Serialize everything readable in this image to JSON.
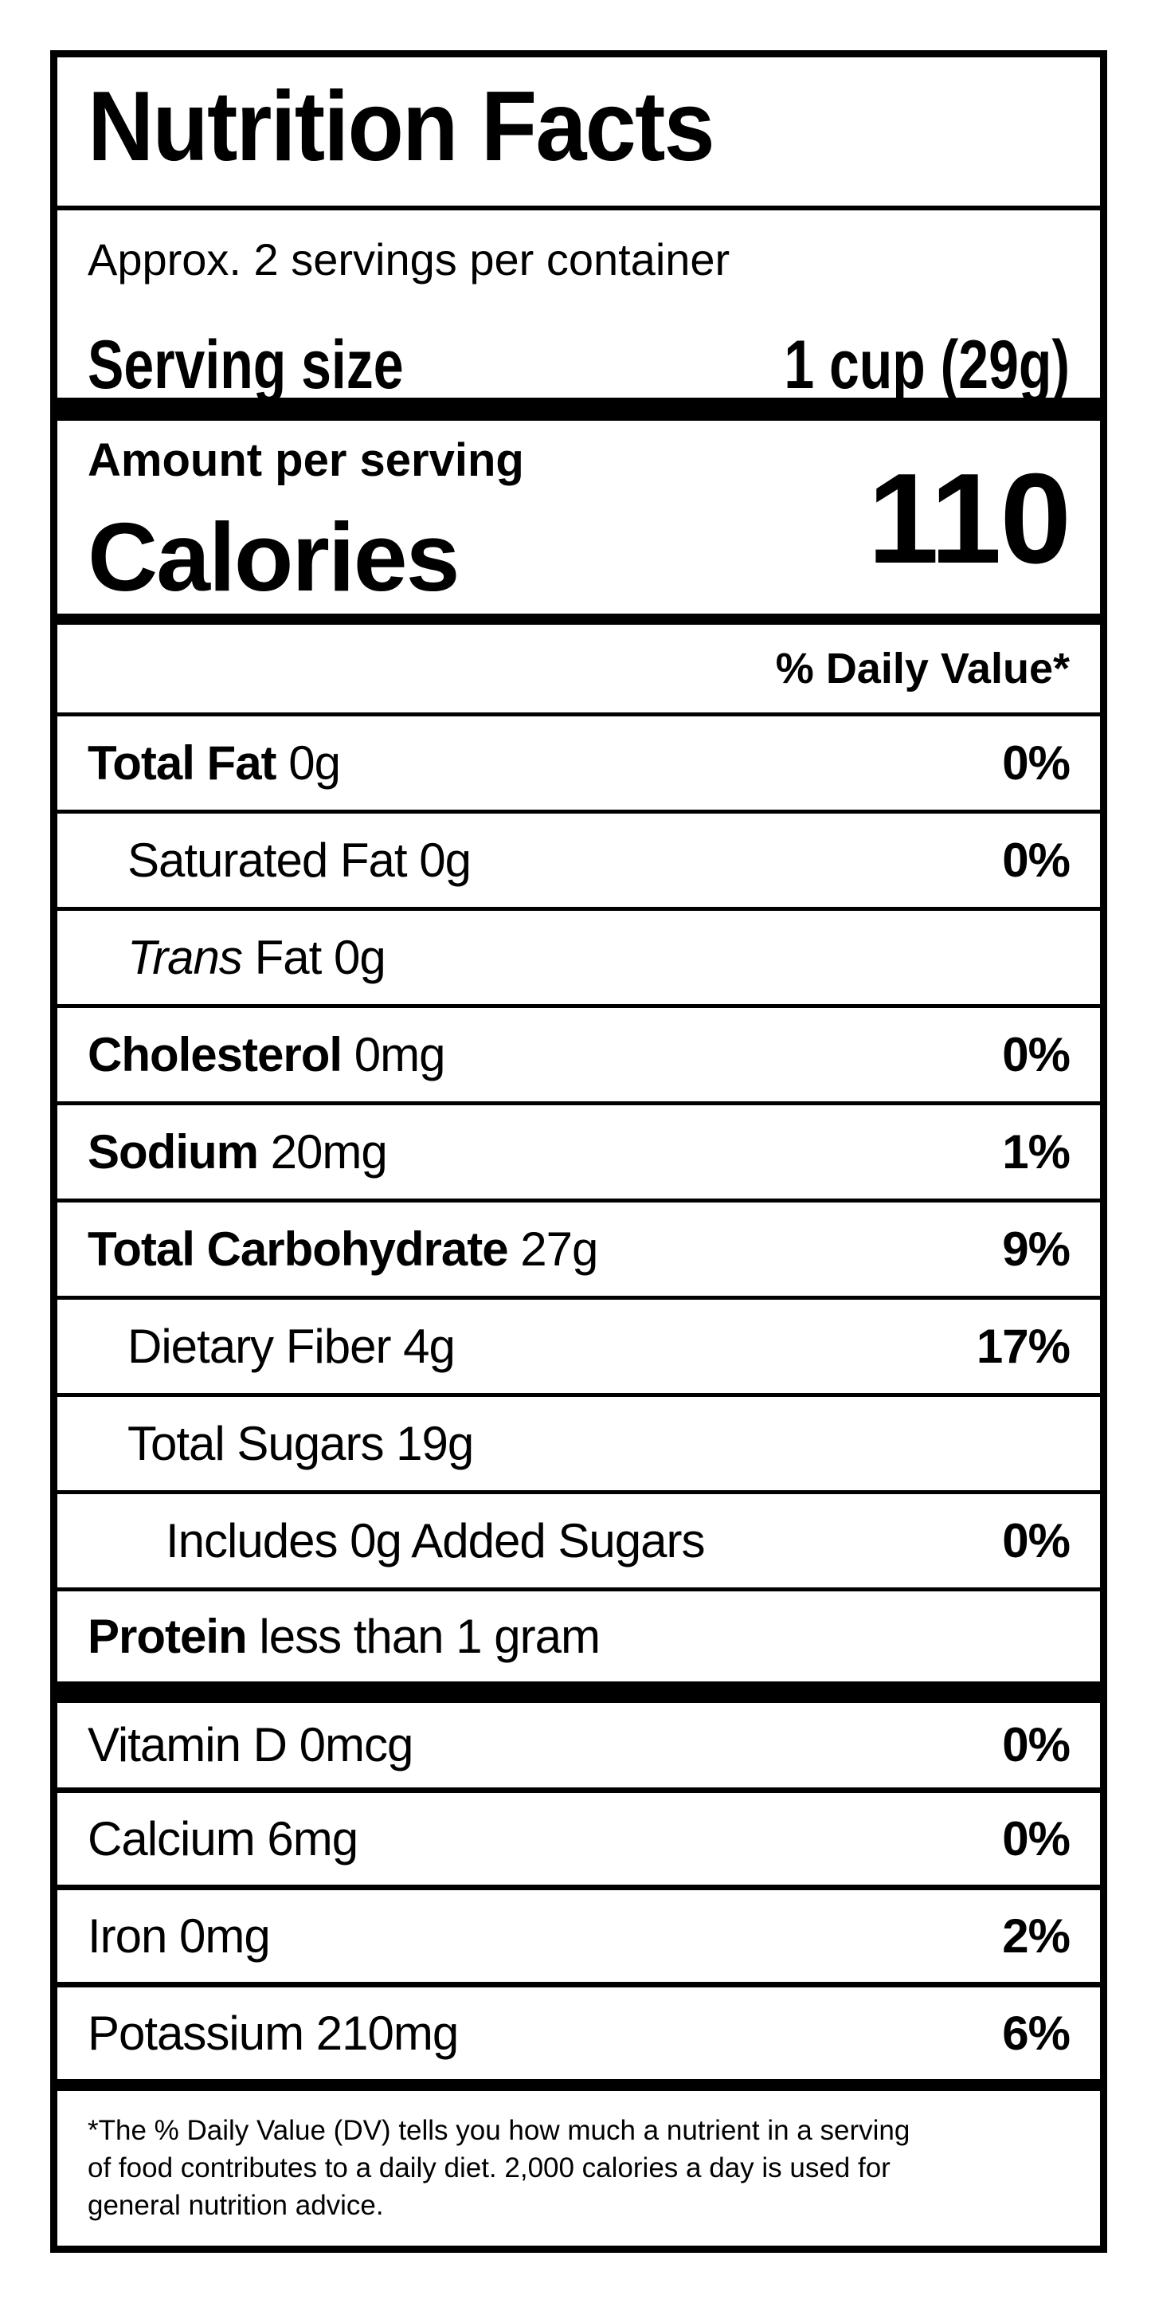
{
  "label": {
    "title": "Nutrition Facts",
    "servings_per_container": "Approx. 2 servings per container",
    "serving_size": {
      "label": "Serving size",
      "value": "1 cup (29g)"
    },
    "amount_per_serving": "Amount per serving",
    "calories": {
      "label": "Calories",
      "value": "110"
    },
    "daily_value_header": "% Daily Value*",
    "colors": {
      "ink": "#000000",
      "background": "#ffffff"
    }
  },
  "rows": [
    {
      "label": "Total Fat",
      "rest": " 0g",
      "pct": "0%"
    },
    {
      "label": "Saturated Fat",
      "rest": " 0g",
      "pct": "0%"
    },
    {
      "label": "Trans",
      "rest": " Fat 0g",
      "pct": ""
    },
    {
      "label": "Cholesterol",
      "rest": " 0mg",
      "pct": "0%"
    },
    {
      "label": "Sodium",
      "rest": " 20mg",
      "pct": "1%"
    },
    {
      "label": "Total Carbohydrate",
      "rest": " 27g",
      "pct": "9%"
    },
    {
      "label": "Dietary Fiber",
      "rest": " 4g",
      "pct": "17%"
    },
    {
      "label": "Total Sugars",
      "rest": " 19g",
      "pct": ""
    },
    {
      "label": "Includes 0g Added Sugars",
      "rest": "",
      "pct": "0%"
    },
    {
      "label": "Protein",
      "rest": " less than 1 gram",
      "pct": ""
    }
  ],
  "vitamins": [
    {
      "label": "Vitamin D 0mcg",
      "pct": "0%"
    },
    {
      "label": "Calcium 6mg",
      "pct": "0%"
    },
    {
      "label": "Iron 0mg",
      "pct": "2%"
    },
    {
      "label": "Potassium 210mg",
      "pct": "6%"
    }
  ],
  "footnote_lines": [
    "*The % Daily Value (DV) tells you how much a nutrient in a serving",
    "of food contributes to a daily diet. 2,000 calories a day is used for",
    "general nutrition advice."
  ]
}
